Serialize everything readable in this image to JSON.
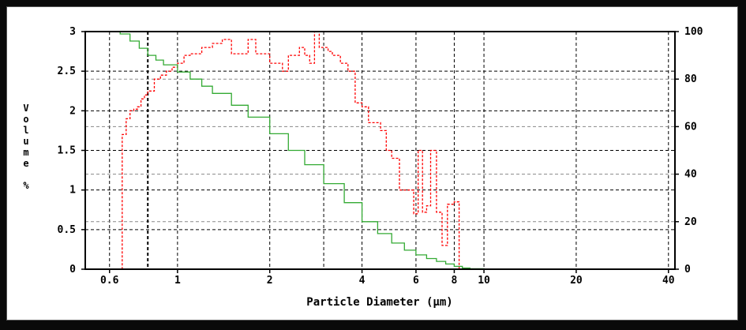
{
  "chart_data": {
    "type": "line",
    "xlabel": "Particle Diameter (µm)",
    "ylabel": "Volume %",
    "x_scale": "log",
    "xlim": [
      0.5,
      42
    ],
    "ylim_left": [
      0,
      3
    ],
    "ylim_right": [
      0,
      100
    ],
    "x_ticks": [
      {
        "value": 0.6,
        "label": "0.6"
      },
      {
        "value": 1,
        "label": "1"
      },
      {
        "value": 2,
        "label": "2"
      },
      {
        "value": 4,
        "label": "4"
      },
      {
        "value": 6,
        "label": "6"
      },
      {
        "value": 8,
        "label": "8"
      },
      {
        "value": 10,
        "label": "10"
      },
      {
        "value": 20,
        "label": "20"
      },
      {
        "value": 40,
        "label": "40"
      }
    ],
    "x_vgrid": [
      0.6,
      0.8,
      1,
      2,
      3,
      4,
      6,
      8,
      10,
      20,
      40
    ],
    "y_left_ticks": [
      {
        "value": 0,
        "label": "0"
      },
      {
        "value": 0.5,
        "label": "0.5"
      },
      {
        "value": 1,
        "label": "1"
      },
      {
        "value": 1.5,
        "label": "1.5"
      },
      {
        "value": 2,
        "label": "2"
      },
      {
        "value": 2.5,
        "label": "2.5"
      },
      {
        "value": 3,
        "label": "3"
      }
    ],
    "y_right_ticks": [
      {
        "value": 0,
        "label": "0"
      },
      {
        "value": 20,
        "label": "20"
      },
      {
        "value": 40,
        "label": "40"
      },
      {
        "value": 60,
        "label": "60"
      },
      {
        "value": 80,
        "label": "80"
      },
      {
        "value": 100,
        "label": "100"
      }
    ],
    "vertical_marker": 0.8,
    "grid": true,
    "series": [
      {
        "kind": "differential-volume",
        "axis": "left",
        "color": "#ff0000",
        "dash": true,
        "x": [
          0.64,
          0.66,
          0.68,
          0.7,
          0.72,
          0.74,
          0.76,
          0.78,
          0.8,
          0.84,
          0.88,
          0.92,
          0.96,
          1.0,
          1.05,
          1.1,
          1.2,
          1.3,
          1.4,
          1.5,
          1.6,
          1.7,
          1.8,
          1.9,
          2.0,
          2.1,
          2.2,
          2.3,
          2.4,
          2.5,
          2.6,
          2.7,
          2.8,
          2.9,
          3.0,
          3.1,
          3.2,
          3.3,
          3.4,
          3.6,
          3.8,
          4.0,
          4.2,
          4.4,
          4.6,
          4.8,
          5.0,
          5.3,
          5.6,
          5.9,
          6.1,
          6.3,
          6.5,
          6.7,
          7.0,
          7.3,
          7.6,
          8.0,
          8.3,
          8.5
        ],
        "y": [
          0.0,
          1.7,
          1.9,
          2.0,
          2.02,
          2.05,
          2.15,
          2.2,
          2.25,
          2.4,
          2.45,
          2.5,
          2.55,
          2.6,
          2.7,
          2.72,
          2.8,
          2.85,
          2.9,
          2.72,
          2.72,
          2.9,
          2.72,
          2.72,
          2.6,
          2.6,
          2.5,
          2.7,
          2.7,
          2.8,
          2.7,
          2.6,
          3.0,
          2.8,
          2.8,
          2.75,
          2.7,
          2.7,
          2.6,
          2.5,
          2.1,
          2.05,
          1.85,
          1.85,
          1.75,
          1.5,
          1.4,
          1.0,
          1.0,
          0.7,
          1.5,
          0.72,
          0.8,
          1.5,
          0.72,
          0.3,
          0.82,
          0.85,
          0.0,
          0.0
        ]
      },
      {
        "kind": "cumulative-undersize",
        "axis": "right",
        "color": "#33aa33",
        "dash": false,
        "x": [
          0.6,
          0.65,
          0.7,
          0.75,
          0.8,
          0.85,
          0.9,
          1.0,
          1.1,
          1.2,
          1.3,
          1.5,
          1.7,
          2.0,
          2.3,
          2.6,
          3.0,
          3.5,
          4.0,
          4.5,
          5.0,
          5.5,
          6.0,
          6.5,
          7.0,
          7.5,
          8.0,
          8.5,
          9.0,
          10.0
        ],
        "y": [
          100,
          99,
          96,
          93,
          90,
          88,
          86,
          83,
          80,
          77,
          74,
          69,
          64,
          57,
          50,
          44,
          36,
          28,
          20,
          15,
          11,
          8,
          6,
          4.5,
          3.3,
          2.2,
          1.2,
          0.5,
          0.2,
          0.0
        ]
      }
    ]
  }
}
